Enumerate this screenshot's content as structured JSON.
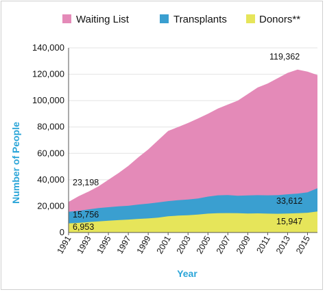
{
  "chart_data": {
    "type": "area",
    "stacked": false,
    "xlabel": "Year",
    "ylabel": "Number of People",
    "ylim": [
      0,
      140000
    ],
    "yticks": [
      0,
      20000,
      40000,
      60000,
      80000,
      100000,
      120000,
      140000
    ],
    "ytick_labels": [
      "0",
      "20,000",
      "40,000",
      "60,000",
      "80,000",
      "100,000",
      "120,000",
      "140,000"
    ],
    "xlim": [
      1991,
      2016
    ],
    "xticks": [
      1991,
      1993,
      1995,
      1997,
      1999,
      2001,
      2003,
      2005,
      2007,
      2009,
      2011,
      2013,
      2015
    ],
    "xtick_labels": [
      "1991",
      "1993",
      "1995",
      "1997",
      "1999",
      "2001",
      "2003",
      "2005",
      "2007",
      "2009",
      "2011",
      "2013",
      "2015"
    ],
    "grid": true,
    "legend_position": "top",
    "x": [
      1991,
      1992,
      1993,
      1994,
      1995,
      1996,
      1997,
      1998,
      1999,
      2000,
      2001,
      2002,
      2003,
      2004,
      2005,
      2006,
      2007,
      2008,
      2009,
      2010,
      2011,
      2012,
      2013,
      2014,
      2015,
      2016
    ],
    "series": [
      {
        "name": "Waiting List",
        "color": "#e48ab8",
        "values": [
          23198,
          27500,
          31000,
          35000,
          40000,
          45000,
          50500,
          57000,
          63000,
          70000,
          77000,
          80000,
          83000,
          86500,
          90000,
          94000,
          97000,
          100000,
          105000,
          110000,
          113000,
          117000,
          121000,
          123500,
          122000,
          119362
        ]
      },
      {
        "name": "Transplants",
        "color": "#3a9fd0",
        "values": [
          15756,
          16500,
          17500,
          18500,
          19200,
          19800,
          20300,
          21200,
          21900,
          22800,
          23800,
          24500,
          25000,
          25800,
          27200,
          28200,
          28400,
          27900,
          28100,
          28300,
          28200,
          28300,
          29000,
          29500,
          30500,
          33612
        ]
      },
      {
        "name": "Donors**",
        "color": "#e6e55a",
        "values": [
          6953,
          7300,
          7900,
          8400,
          8900,
          9400,
          9800,
          10300,
          10700,
          11300,
          12300,
          12800,
          13100,
          13600,
          14300,
          14600,
          14700,
          14600,
          14400,
          14500,
          14300,
          14200,
          14400,
          14600,
          15000,
          15947
        ]
      }
    ],
    "annotations": [
      "23,198",
      "15,756",
      "6,953",
      "119,362",
      "33,612",
      "15,947"
    ]
  }
}
